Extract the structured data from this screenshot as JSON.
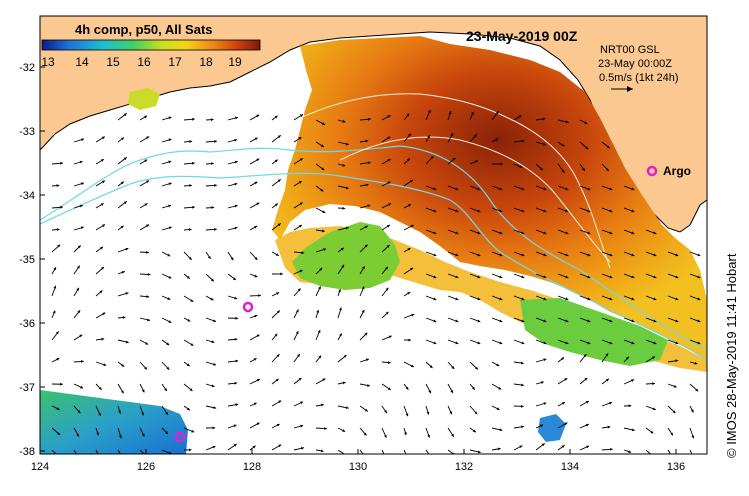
{
  "title": "23-May-2019 00Z",
  "legend": {
    "title": "4h comp, p50, All Sats",
    "ticks": [
      "13",
      "14",
      "15",
      "16",
      "17",
      "18",
      "19"
    ],
    "colors": [
      "#0a2a9e",
      "#1f7ad8",
      "#1fb5d8",
      "#30c870",
      "#a8dc2a",
      "#f6e21a",
      "#f7a514",
      "#e0580e",
      "#b8320c",
      "#7a1e08"
    ]
  },
  "info": {
    "line1": "NRT00 GSL",
    "line2": "23-May 00:00Z",
    "line3": "0.5m/s (1kt 24h)"
  },
  "argo": {
    "label": "Argo"
  },
  "axes": {
    "lon_ticks": [
      "124",
      "126",
      "128",
      "130",
      "132",
      "134",
      "136"
    ],
    "lat_ticks": [
      "-32",
      "-33",
      "-34",
      "-35",
      "-36",
      "-37",
      "-38"
    ]
  },
  "credit": "© IMOS 28-May-2019 11:41 Hobart",
  "colors": {
    "land": "#fac890",
    "ocean": "#ffffff",
    "contour": "#6fd8e6",
    "argo": "#e020d0"
  }
}
